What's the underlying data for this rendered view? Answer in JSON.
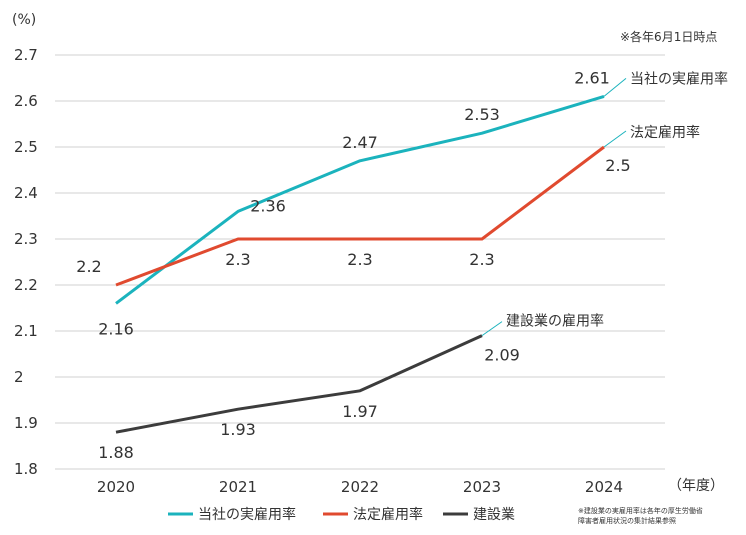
{
  "chart_data": {
    "type": "line",
    "categories": [
      "2020",
      "2021",
      "2022",
      "2023",
      "2024"
    ],
    "y_unit_label": "(%)",
    "x_unit_label": "（年度）",
    "yticks": [
      "1.8",
      "1.9",
      "2",
      "2.1",
      "2.2",
      "2.3",
      "2.4",
      "2.5",
      "2.6",
      "2.7"
    ],
    "ylim": [
      1.8,
      2.7
    ],
    "grid": true,
    "note_top_right": "※各年6月1日時点",
    "source_note_line1": "※建設業の実雇用率は各年の厚生労働省",
    "source_note_line2": "障害者雇用状況の集計結果参照",
    "legend_position": "bottom",
    "series": [
      {
        "name": "当社の実雇用率",
        "inline_label": "当社の実雇用率",
        "color": "#1bb3bd",
        "values": [
          2.16,
          2.36,
          2.47,
          2.53,
          2.61
        ],
        "labels": [
          "2.16",
          "2.36",
          "2.47",
          "2.53",
          "2.61"
        ]
      },
      {
        "name": "法定雇用率",
        "inline_label": "法定雇用率",
        "color": "#e04a2f",
        "values": [
          2.2,
          2.3,
          2.3,
          2.3,
          2.5
        ],
        "labels": [
          "2.2",
          "2.3",
          "2.3",
          "2.3",
          "2.5"
        ]
      },
      {
        "name": "建設業",
        "inline_label": "建設業の雇用率",
        "color": "#3c3c3c",
        "values": [
          1.88,
          1.93,
          1.97,
          2.09,
          null
        ],
        "labels": [
          "1.88",
          "1.93",
          "1.97",
          "2.09",
          ""
        ]
      }
    ]
  }
}
